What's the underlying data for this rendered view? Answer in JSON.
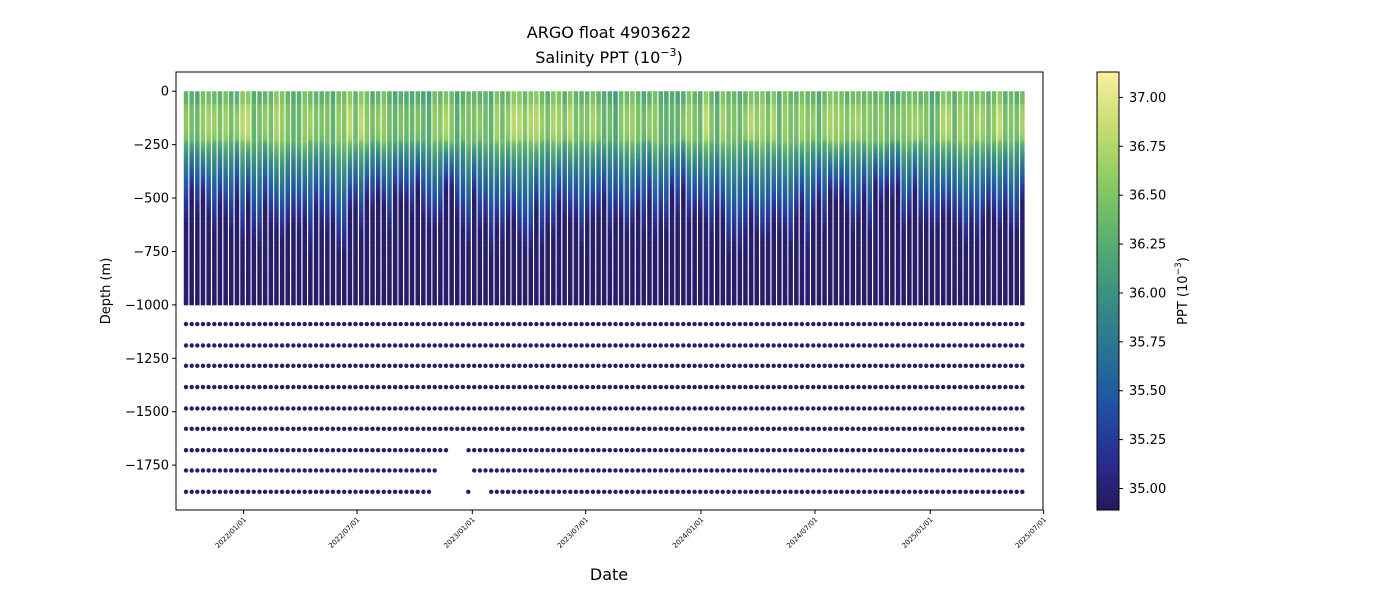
{
  "chart_data": {
    "type": "scatter",
    "title_line1": "ARGO float 4903622",
    "title_line2_base": "Salinity PPT (10",
    "title_line2_exp": "−3",
    "title_line2_end": ")",
    "xlabel": "Date",
    "ylabel": "Depth (m)",
    "colorbar_label_base": "PPT (10",
    "colorbar_label_exp": "−3",
    "colorbar_label_end": ")",
    "x_range": [
      "2021-09-15",
      "2025-06-30"
    ],
    "x_ticks": [
      "2022/01/01",
      "2022/07/01",
      "2023/01/01",
      "2023/07/01",
      "2024/01/01",
      "2024/07/01",
      "2025/01/01",
      "2025/07/01"
    ],
    "x_tick_dates": [
      "2022-01-01",
      "2022-07-01",
      "2023-01-01",
      "2023-07-01",
      "2024-01-01",
      "2024-07-01",
      "2025-01-01",
      "2025-07-01"
    ],
    "ylim": [
      -1960,
      90
    ],
    "y_ticks": [
      0,
      -250,
      -500,
      -750,
      -1000,
      -1250,
      -1500,
      -1750
    ],
    "y_tick_labels": [
      "0",
      "−250",
      "−500",
      "−750",
      "−1000",
      "−1250",
      "−1500",
      "−1750"
    ],
    "colorbar_range": [
      34.89,
      37.13
    ],
    "colorbar_ticks": [
      35.0,
      35.25,
      35.5,
      35.75,
      36.0,
      36.25,
      36.5,
      36.75,
      37.0
    ],
    "colorbar_tick_labels": [
      "35.00",
      "35.25",
      "35.50",
      "35.75",
      "36.00",
      "36.25",
      "36.50",
      "36.75",
      "37.00"
    ],
    "colormap": [
      "#26185f",
      "#2a2f94",
      "#1f56a3",
      "#2a7591",
      "#3b9381",
      "#5cb16e",
      "#8ccb60",
      "#c5dd72",
      "#fcef9e"
    ],
    "profiles": {
      "first_date": "2021-10-01",
      "last_date": "2025-05-28",
      "count": 149,
      "continuous_depth_range": [
        0,
        -990
      ],
      "surface_salinity_typical": 36.4,
      "mid_salinity_at_500m": 35.3,
      "deep_salinity": 34.95,
      "deep_sample_depths": [
        -1090,
        -1190,
        -1285,
        -1385,
        -1485,
        -1580,
        -1680,
        -1775,
        -1875
      ]
    },
    "gaps_deep": [
      {
        "depth": -1680,
        "from": "2022-11-20",
        "to": "2022-12-20"
      },
      {
        "depth": -1775,
        "from": "2022-11-10",
        "to": "2022-12-30"
      },
      {
        "depth": -1875,
        "from": "2022-10-25",
        "to": "2022-12-30"
      },
      {
        "depth": -1875,
        "from": "2022-12-31",
        "to": "2023-01-30"
      }
    ]
  }
}
